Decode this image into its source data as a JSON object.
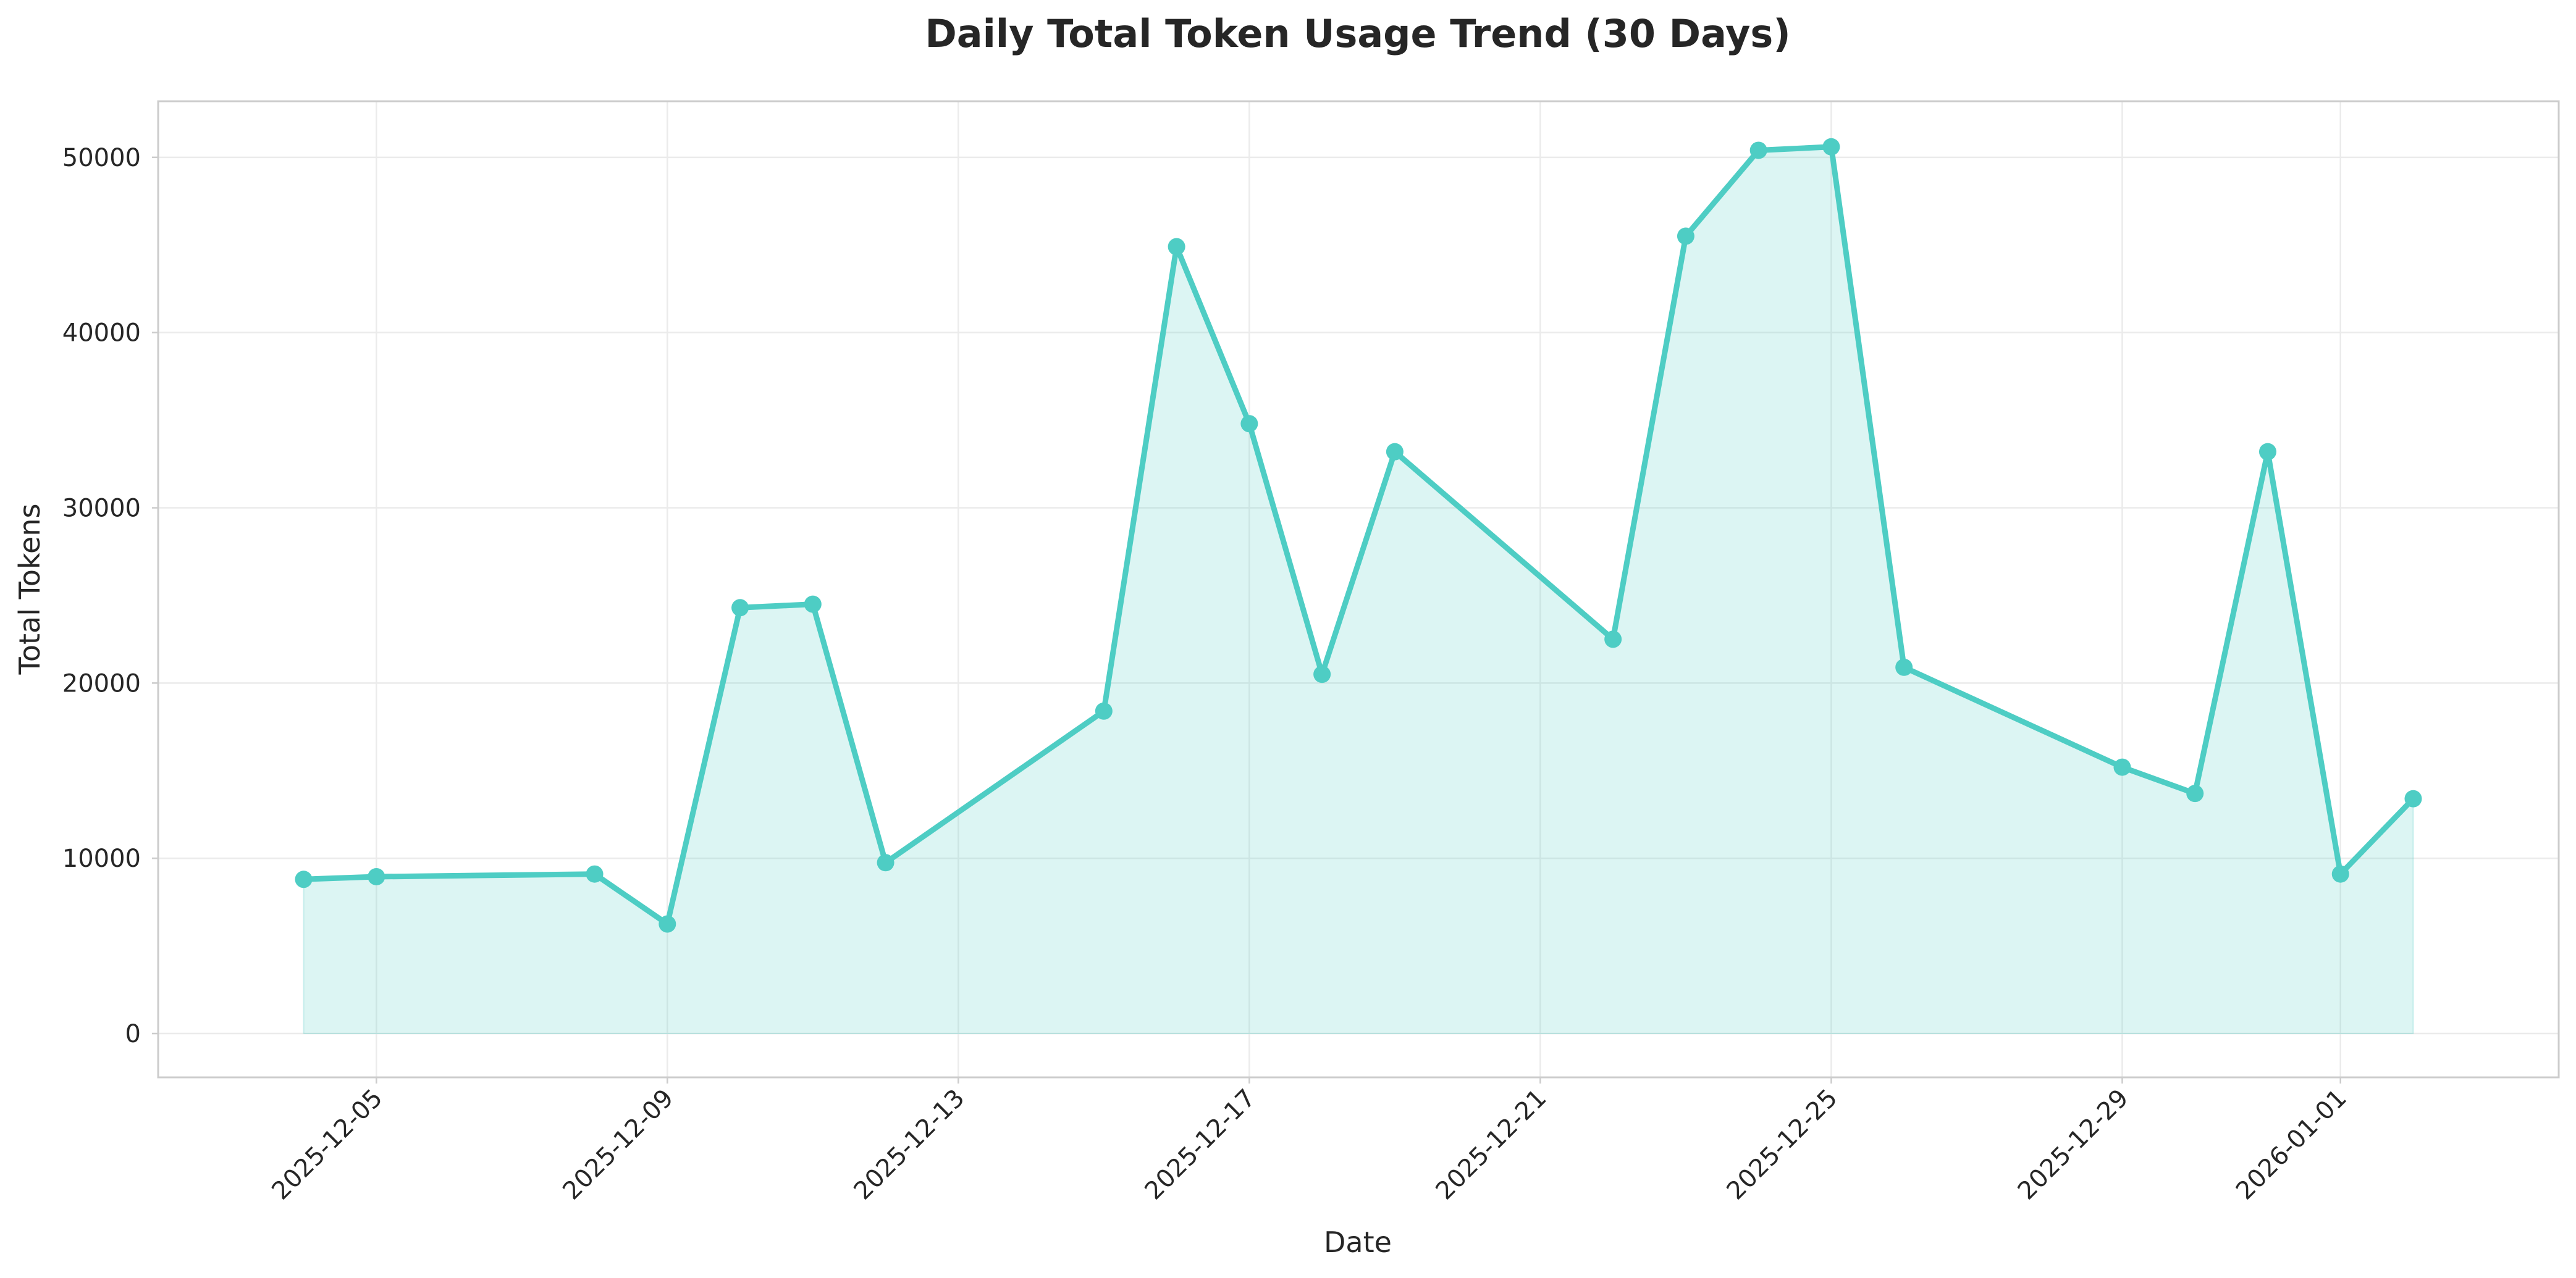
{
  "colors": {
    "series": "#4ECDC4",
    "fill": "#4ECDC4",
    "text": "#262626",
    "grid": "#ebebeb",
    "frame": "#cccccc"
  },
  "chart_data": {
    "type": "area",
    "title": "Daily Total Token Usage Trend (30 Days)",
    "xlabel": "Date",
    "ylabel": "Total Tokens",
    "x_is_date": true,
    "xlim": [
      "2025-12-02",
      "2026-01-04"
    ],
    "ylim": [
      -2500,
      53200
    ],
    "grid": true,
    "legend": "none",
    "xticks": [
      "2025-12-05",
      "2025-12-09",
      "2025-12-13",
      "2025-12-17",
      "2025-12-21",
      "2025-12-25",
      "2025-12-29",
      "2026-01-01"
    ],
    "yticks": [
      0,
      10000,
      20000,
      30000,
      40000,
      50000
    ],
    "series": [
      {
        "x": [
          "2025-12-04",
          "2025-12-05",
          "2025-12-08",
          "2025-12-09",
          "2025-12-10",
          "2025-12-11",
          "2025-12-12",
          "2025-12-15",
          "2025-12-16",
          "2025-12-17",
          "2025-12-18",
          "2025-12-19",
          "2025-12-22",
          "2025-12-23",
          "2025-12-24",
          "2025-12-25",
          "2025-12-26",
          "2025-12-29",
          "2025-12-30",
          "2025-12-31",
          "2026-01-01",
          "2026-01-02"
        ],
        "values": [
          8800,
          8950,
          9100,
          6250,
          24300,
          24500,
          9750,
          18400,
          44900,
          34800,
          20500,
          33200,
          22500,
          45500,
          50400,
          50600,
          20900,
          15200,
          13700,
          33200,
          9100,
          13400
        ]
      }
    ]
  }
}
